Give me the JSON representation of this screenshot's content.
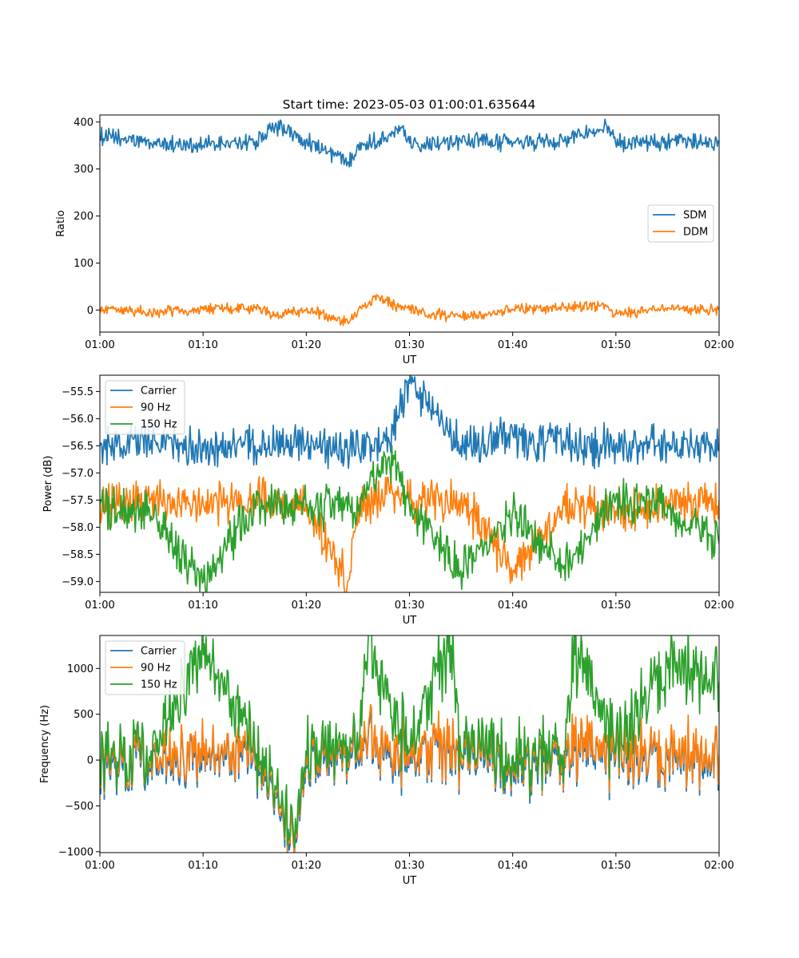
{
  "title": "Start time: 2023-05-03 01:00:01.635644",
  "colors": {
    "blue": "#1f77b4",
    "orange": "#ff7f0e",
    "green": "#2ca02c"
  },
  "chart_data": [
    {
      "type": "line",
      "xlabel": "UT",
      "ylabel": "Ratio",
      "xlim": [
        "01:00",
        "02:00"
      ],
      "xticks": [
        "01:00",
        "01:10",
        "01:20",
        "01:30",
        "01:40",
        "01:50",
        "02:00"
      ],
      "ylim": [
        -47,
        415
      ],
      "yticks": [
        0,
        100,
        200,
        300,
        400
      ],
      "ytick_labels": [
        "0",
        "100",
        "200",
        "300",
        "400"
      ],
      "legend_placement": "center-right",
      "grid": false,
      "x": [
        "01:00",
        "01:05",
        "01:10",
        "01:15",
        "01:17",
        "01:20",
        "01:24",
        "01:25",
        "01:27",
        "01:29",
        "01:30",
        "01:35",
        "01:40",
        "01:45",
        "01:49",
        "01:50",
        "01:55",
        "02:00"
      ],
      "series": [
        {
          "name": "SDM",
          "color": "#1f77b4",
          "values": [
            370,
            355,
            350,
            358,
            392,
            360,
            315,
            352,
            360,
            392,
            355,
            360,
            355,
            360,
            395,
            355,
            355,
            358
          ]
        },
        {
          "name": "DDM",
          "color": "#ff7f0e",
          "values": [
            5,
            -5,
            0,
            5,
            -10,
            0,
            -25,
            0,
            30,
            5,
            0,
            -15,
            0,
            5,
            10,
            -10,
            5,
            0
          ]
        }
      ]
    },
    {
      "type": "line",
      "xlabel": "UT",
      "ylabel": "Power (dB)",
      "xlim": [
        "01:00",
        "02:00"
      ],
      "xticks": [
        "01:00",
        "01:10",
        "01:20",
        "01:30",
        "01:40",
        "01:50",
        "02:00"
      ],
      "ylim": [
        -59.2,
        -55.2
      ],
      "yticks": [
        -55.5,
        -56.0,
        -56.5,
        -57.0,
        -57.5,
        -58.0,
        -58.5,
        -59.0
      ],
      "ytick_labels": [
        "−55.5",
        "−56.0",
        "−56.5",
        "−57.0",
        "−57.5",
        "−58.0",
        "−58.5",
        "−59.0"
      ],
      "legend_placement": "upper-left",
      "grid": false,
      "x": [
        "01:00",
        "01:05",
        "01:10",
        "01:15",
        "01:20",
        "01:24",
        "01:25",
        "01:28",
        "01:30",
        "01:35",
        "01:40",
        "01:45",
        "01:50",
        "01:55",
        "02:00"
      ],
      "series": [
        {
          "name": "Carrier",
          "color": "#1f77b4",
          "values": [
            -56.5,
            -56.4,
            -56.6,
            -56.5,
            -56.5,
            -56.6,
            -56.5,
            -56.4,
            -55.35,
            -56.5,
            -56.3,
            -56.5,
            -56.5,
            -56.5,
            -56.5
          ]
        },
        {
          "name": "90 Hz",
          "color": "#ff7f0e",
          "values": [
            -57.6,
            -57.5,
            -57.6,
            -57.5,
            -57.6,
            -59.0,
            -57.6,
            -57.3,
            -57.5,
            -57.5,
            -58.8,
            -57.6,
            -57.7,
            -57.6,
            -57.5
          ]
        },
        {
          "name": "150 Hz",
          "color": "#2ca02c",
          "values": [
            -57.6,
            -57.8,
            -59.0,
            -57.6,
            -57.6,
            -57.7,
            -57.7,
            -56.7,
            -57.6,
            -58.8,
            -57.7,
            -58.7,
            -57.5,
            -57.6,
            -58.3
          ]
        }
      ]
    },
    {
      "type": "line",
      "xlabel": "UT",
      "ylabel": "Frequency (Hz)",
      "xlim": [
        "01:00",
        "02:00"
      ],
      "xticks": [
        "01:00",
        "01:10",
        "01:20",
        "01:30",
        "01:40",
        "01:50",
        "02:00"
      ],
      "ylim": [
        -1010,
        1360
      ],
      "yticks": [
        1000,
        500,
        0,
        -500,
        -1000
      ],
      "ytick_labels": [
        "1000",
        "500",
        "0",
        "−500",
        "−1000"
      ],
      "legend_placement": "upper-left",
      "grid": false,
      "x": [
        "01:00",
        "01:05",
        "01:10",
        "01:15",
        "01:19",
        "01:20",
        "01:25",
        "01:26",
        "01:30",
        "01:34",
        "01:35",
        "01:40",
        "01:45",
        "01:46",
        "01:50",
        "01:55",
        "02:00"
      ],
      "series": [
        {
          "name": "Carrier",
          "color": "#1f77b4",
          "values": [
            -100,
            0,
            0,
            50,
            -900,
            0,
            0,
            200,
            0,
            100,
            0,
            -50,
            0,
            100,
            0,
            0,
            0
          ]
        },
        {
          "name": "90 Hz",
          "color": "#ff7f0e",
          "values": [
            -50,
            50,
            50,
            100,
            -850,
            50,
            50,
            250,
            50,
            150,
            50,
            0,
            50,
            150,
            50,
            50,
            50
          ]
        },
        {
          "name": "150 Hz",
          "color": "#2ca02c",
          "values": [
            0,
            100,
            1150,
            150,
            -800,
            100,
            100,
            1250,
            100,
            1250,
            100,
            50,
            100,
            1150,
            100,
            1000,
            850
          ]
        }
      ]
    }
  ]
}
